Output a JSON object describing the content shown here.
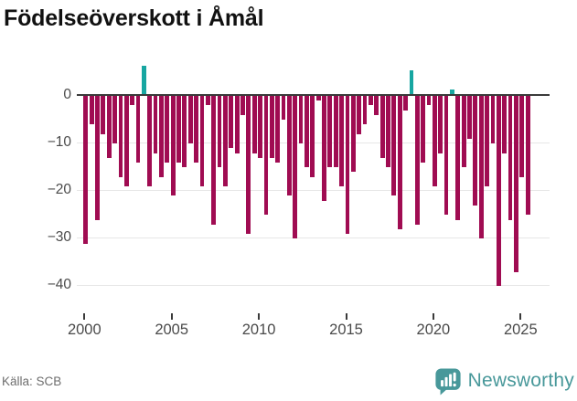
{
  "title": "Födelseöverskott i Åmål",
  "footer": {
    "source": "Källa: SCB",
    "brand": "Newsworthy"
  },
  "chart_data": {
    "type": "bar",
    "title": "Födelseöverskott i Åmål",
    "period_type": "tertial (3 bars per year)",
    "start_period": "2000-1",
    "end_period": "2025-2",
    "grid": "horizontal gridlines on",
    "legend": "none",
    "ylim": [
      -44,
      8
    ],
    "colors": {
      "negative": "#a00c52",
      "positive": "#17a6a1",
      "axis": "#3a3a3a",
      "grid": "#e7e7e7"
    },
    "y_ticks": [
      {
        "label": "0",
        "value": 0
      },
      {
        "label": "−10",
        "value": -10
      },
      {
        "label": "−20",
        "value": -20
      },
      {
        "label": "−30",
        "value": -30
      },
      {
        "label": "−40",
        "value": -40
      }
    ],
    "x_ticks": [
      {
        "label": "2000",
        "year": 2000
      },
      {
        "label": "2005",
        "year": 2005
      },
      {
        "label": "2010",
        "year": 2010
      },
      {
        "label": "2015",
        "year": 2015
      },
      {
        "label": "2020",
        "year": 2020
      },
      {
        "label": "2025",
        "year": 2025
      }
    ],
    "periods": [
      "2000-1",
      "2000-2",
      "2000-3",
      "2001-1",
      "2001-2",
      "2001-3",
      "2002-1",
      "2002-2",
      "2002-3",
      "2003-1",
      "2003-2",
      "2003-3",
      "2004-1",
      "2004-2",
      "2004-3",
      "2005-1",
      "2005-2",
      "2005-3",
      "2006-1",
      "2006-2",
      "2006-3",
      "2007-1",
      "2007-2",
      "2007-3",
      "2008-1",
      "2008-2",
      "2008-3",
      "2009-1",
      "2009-2",
      "2009-3",
      "2010-1",
      "2010-2",
      "2010-3",
      "2011-1",
      "2011-2",
      "2011-3",
      "2012-1",
      "2012-2",
      "2012-3",
      "2013-1",
      "2013-2",
      "2013-3",
      "2014-1",
      "2014-2",
      "2014-3",
      "2015-1",
      "2015-2",
      "2015-3",
      "2016-1",
      "2016-2",
      "2016-3",
      "2017-1",
      "2017-2",
      "2017-3",
      "2018-1",
      "2018-2",
      "2018-3",
      "2019-1",
      "2019-2",
      "2019-3",
      "2020-1",
      "2020-2",
      "2020-3",
      "2021-1",
      "2021-2",
      "2021-3",
      "2022-1",
      "2022-2",
      "2022-3",
      "2023-1",
      "2023-2",
      "2023-3",
      "2024-1",
      "2024-2",
      "2024-3",
      "2025-1",
      "2025-2"
    ],
    "values": [
      -31,
      -6,
      -26,
      -8,
      -13,
      -10,
      -17,
      -19,
      -2,
      -14,
      6,
      -19,
      -12,
      -17,
      -14,
      -21,
      -14,
      -15,
      -10,
      -14,
      -19,
      -2,
      -27,
      -15,
      -19,
      -11,
      -12,
      -4,
      -29,
      -12,
      -13,
      -25,
      -13,
      -14,
      -5,
      -21,
      -30,
      -10,
      -15,
      -17,
      -1,
      -22,
      -15,
      -15,
      -19,
      -29,
      -16,
      -8,
      -6,
      -2,
      -4,
      -13,
      -15,
      -21,
      -28,
      -3,
      5,
      -27,
      -14,
      -2,
      -19,
      -12,
      -25,
      1,
      -26,
      -15,
      -9,
      -23,
      -30,
      -19,
      -10,
      -40,
      -12,
      -26,
      -37,
      -17,
      -25
    ]
  }
}
